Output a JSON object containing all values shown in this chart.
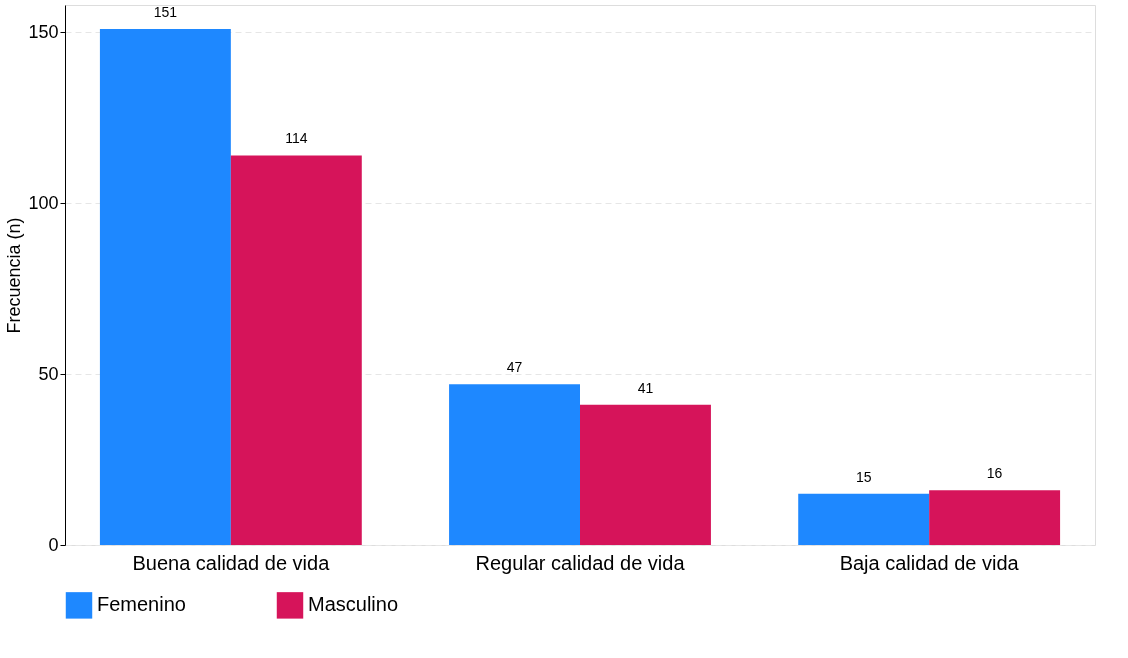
{
  "chart_data": {
    "type": "bar",
    "ylabel": "Frecuencia (n)",
    "categories": [
      "Buena calidad de vida",
      "Regular calidad de vida",
      "Baja calidad de vida"
    ],
    "series": [
      {
        "name": "Femenino",
        "color": "#1e88ff",
        "values": [
          151,
          47,
          15
        ]
      },
      {
        "name": "Masculino",
        "color": "#d6145a",
        "values": [
          114,
          41,
          16
        ]
      }
    ],
    "ylim": [
      0,
      158
    ],
    "yticks": [
      0,
      50,
      100,
      150
    ],
    "grid": "y",
    "legend": "bottom",
    "data_labels": true
  }
}
